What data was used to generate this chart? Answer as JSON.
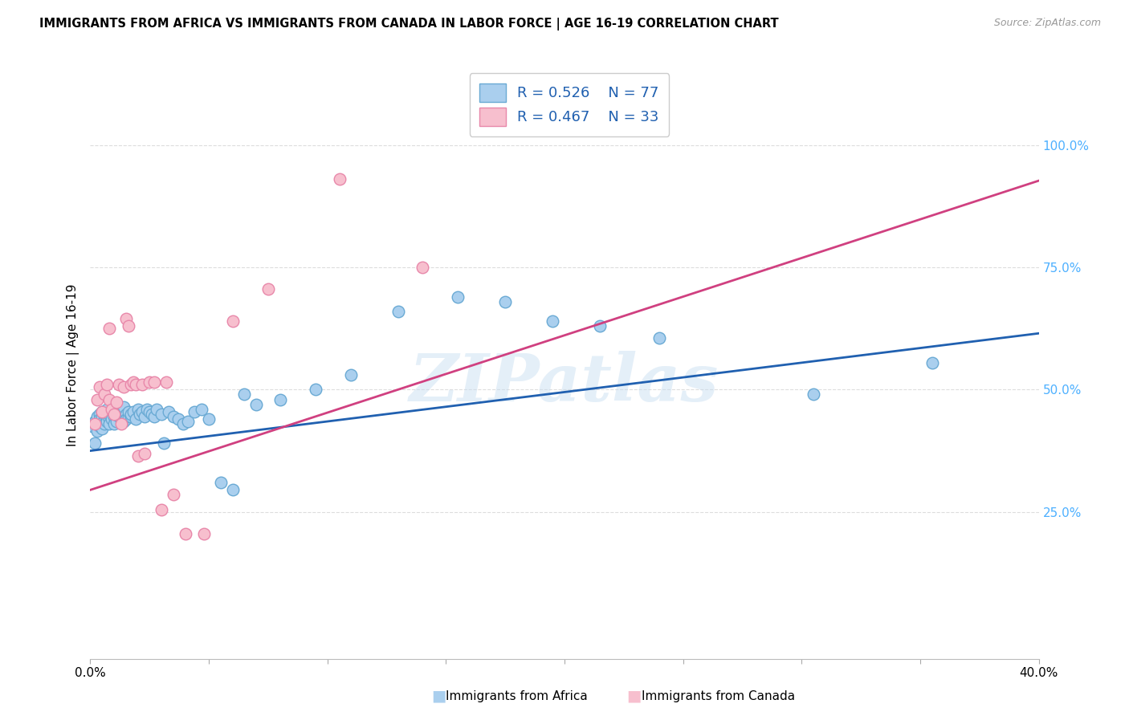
{
  "title": "IMMIGRANTS FROM AFRICA VS IMMIGRANTS FROM CANADA IN LABOR FORCE | AGE 16-19 CORRELATION CHART",
  "source": "Source: ZipAtlas.com",
  "ylabel": "In Labor Force | Age 16-19",
  "xlim": [
    0.0,
    0.4
  ],
  "ylim": [
    -0.05,
    1.15
  ],
  "x_ticks": [
    0.0,
    0.05,
    0.1,
    0.15,
    0.2,
    0.25,
    0.3,
    0.35,
    0.4
  ],
  "y_ticks_right": [
    0.25,
    0.5,
    0.75,
    1.0
  ],
  "y_tick_labels_right": [
    "25.0%",
    "50.0%",
    "75.0%",
    "100.0%"
  ],
  "africa_color": "#aacfee",
  "africa_edge": "#6aaad4",
  "canada_color": "#f7bfce",
  "canada_edge": "#e888aa",
  "line_blue": "#2060b0",
  "line_pink": "#d04080",
  "watermark": "ZIPatlas",
  "africa_x": [
    0.001,
    0.002,
    0.002,
    0.003,
    0.003,
    0.003,
    0.004,
    0.004,
    0.004,
    0.005,
    0.005,
    0.005,
    0.005,
    0.006,
    0.006,
    0.006,
    0.007,
    0.007,
    0.007,
    0.008,
    0.008,
    0.008,
    0.009,
    0.009,
    0.01,
    0.01,
    0.01,
    0.011,
    0.011,
    0.012,
    0.012,
    0.013,
    0.013,
    0.014,
    0.014,
    0.015,
    0.015,
    0.016,
    0.016,
    0.017,
    0.017,
    0.018,
    0.019,
    0.02,
    0.021,
    0.022,
    0.023,
    0.024,
    0.025,
    0.026,
    0.027,
    0.028,
    0.03,
    0.031,
    0.033,
    0.035,
    0.037,
    0.039,
    0.041,
    0.044,
    0.047,
    0.05,
    0.055,
    0.06,
    0.065,
    0.07,
    0.08,
    0.095,
    0.11,
    0.13,
    0.155,
    0.175,
    0.195,
    0.215,
    0.24,
    0.305,
    0.355
  ],
  "africa_y": [
    0.425,
    0.39,
    0.435,
    0.415,
    0.445,
    0.43,
    0.425,
    0.45,
    0.44,
    0.435,
    0.445,
    0.455,
    0.42,
    0.44,
    0.45,
    0.43,
    0.445,
    0.46,
    0.435,
    0.44,
    0.45,
    0.43,
    0.455,
    0.44,
    0.445,
    0.43,
    0.46,
    0.45,
    0.435,
    0.445,
    0.455,
    0.44,
    0.45,
    0.435,
    0.465,
    0.45,
    0.44,
    0.445,
    0.455,
    0.445,
    0.45,
    0.455,
    0.44,
    0.46,
    0.45,
    0.455,
    0.445,
    0.46,
    0.455,
    0.45,
    0.445,
    0.46,
    0.45,
    0.39,
    0.455,
    0.445,
    0.44,
    0.43,
    0.435,
    0.455,
    0.46,
    0.44,
    0.31,
    0.295,
    0.49,
    0.47,
    0.48,
    0.5,
    0.53,
    0.66,
    0.69,
    0.68,
    0.64,
    0.63,
    0.605,
    0.49,
    0.555
  ],
  "canada_x": [
    0.002,
    0.003,
    0.004,
    0.005,
    0.006,
    0.007,
    0.008,
    0.008,
    0.009,
    0.01,
    0.011,
    0.012,
    0.013,
    0.014,
    0.015,
    0.016,
    0.017,
    0.018,
    0.019,
    0.02,
    0.022,
    0.023,
    0.025,
    0.027,
    0.03,
    0.032,
    0.035,
    0.04,
    0.048,
    0.06,
    0.075,
    0.105,
    0.14
  ],
  "canada_y": [
    0.43,
    0.48,
    0.505,
    0.455,
    0.49,
    0.51,
    0.48,
    0.625,
    0.46,
    0.45,
    0.475,
    0.51,
    0.43,
    0.505,
    0.645,
    0.63,
    0.51,
    0.515,
    0.51,
    0.365,
    0.51,
    0.37,
    0.515,
    0.515,
    0.255,
    0.515,
    0.285,
    0.205,
    0.205,
    0.64,
    0.705,
    0.93,
    0.75
  ]
}
